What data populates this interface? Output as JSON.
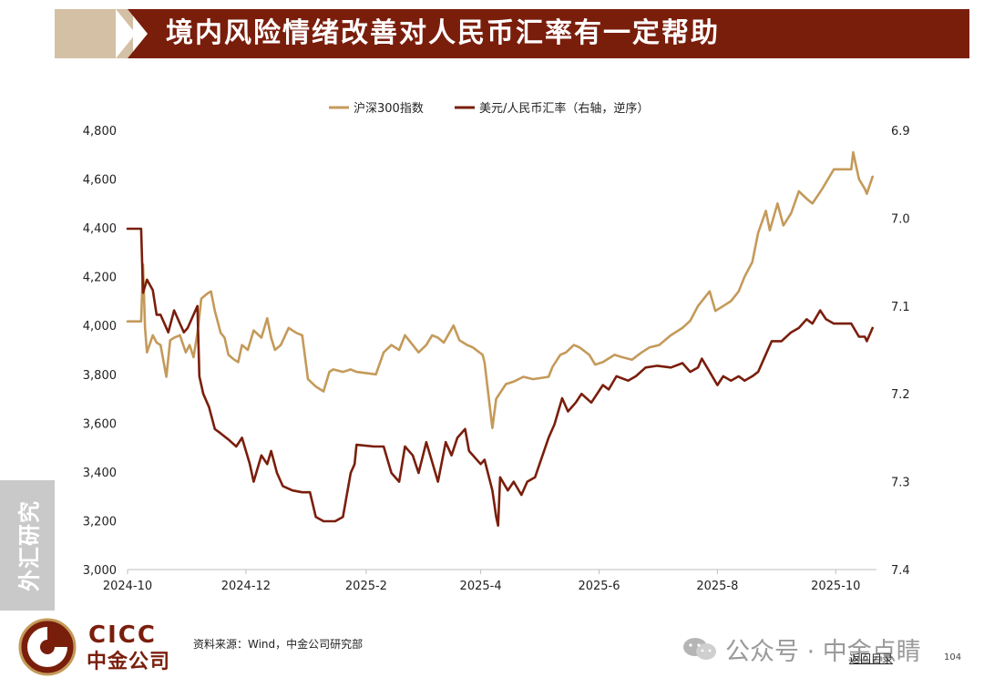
{
  "header": {
    "title": "境内风险情绪改善对人民币汇率有一定帮助"
  },
  "sidebar": {
    "label": "外汇研究"
  },
  "legend": {
    "items": [
      "沪深300指数",
      "美元/人民币汇率（右轴，逆序）"
    ]
  },
  "colors": {
    "brand": "#7a1e0c",
    "csi300": "#c49a5a",
    "usdcny": "#7a1e0c",
    "banner_tab": "#d4c0a4"
  },
  "footer": {
    "source": "资料来源：Wind，中金公司研究部",
    "logo_en": "CICC",
    "logo_cn": "中金公司",
    "watermark": "公众号 · 中金点睛",
    "nav_link": "返回目录",
    "page_number": "104"
  },
  "chart_data": {
    "type": "line",
    "x_tick_labels": [
      "2024-10",
      "2024-12",
      "2025-2",
      "2025-4",
      "2025-6",
      "2025-8",
      "2025-10"
    ],
    "left_axis": {
      "ylim": [
        3000,
        4800
      ],
      "ticks": [
        "3,000",
        "3,200",
        "3,400",
        "3,600",
        "3,800",
        "4,000",
        "4,200",
        "4,400",
        "4,600",
        "4,800"
      ]
    },
    "right_axis": {
      "ylim": [
        6.9,
        7.4
      ],
      "inverted": true,
      "ticks": [
        "6.9",
        "7.0",
        "7.1",
        "7.2",
        "7.3",
        "7.4"
      ]
    },
    "legend_position": "top-center",
    "grid": false,
    "series": [
      {
        "name": "沪深300指数",
        "axis": "left",
        "color": "#c49a5a",
        "points": [
          [
            "2024-10-01",
            4017
          ],
          [
            "2024-10-08",
            4017
          ],
          [
            "2024-10-09",
            4250
          ],
          [
            "2024-10-10",
            3990
          ],
          [
            "2024-10-11",
            3890
          ],
          [
            "2024-10-14",
            3960
          ],
          [
            "2024-10-16",
            3930
          ],
          [
            "2024-10-18",
            3920
          ],
          [
            "2024-10-21",
            3790
          ],
          [
            "2024-10-23",
            3940
          ],
          [
            "2024-10-25",
            3950
          ],
          [
            "2024-10-28",
            3960
          ],
          [
            "2024-10-31",
            3890
          ],
          [
            "2024-11-02",
            3920
          ],
          [
            "2024-11-04",
            3870
          ],
          [
            "2024-11-06",
            3970
          ],
          [
            "2024-11-08",
            4110
          ],
          [
            "2024-11-11",
            4130
          ],
          [
            "2024-11-13",
            4140
          ],
          [
            "2024-11-15",
            4060
          ],
          [
            "2024-11-18",
            3970
          ],
          [
            "2024-11-20",
            3950
          ],
          [
            "2024-11-22",
            3880
          ],
          [
            "2024-11-25",
            3860
          ],
          [
            "2024-11-27",
            3850
          ],
          [
            "2024-11-29",
            3920
          ],
          [
            "2024-12-02",
            3900
          ],
          [
            "2024-12-05",
            3980
          ],
          [
            "2024-12-09",
            3950
          ],
          [
            "2024-12-12",
            4030
          ],
          [
            "2024-12-14",
            3950
          ],
          [
            "2024-12-16",
            3900
          ],
          [
            "2024-12-19",
            3920
          ],
          [
            "2024-12-23",
            3990
          ],
          [
            "2024-12-27",
            3970
          ],
          [
            "2024-12-30",
            3960
          ],
          [
            "2025-01-02",
            3780
          ],
          [
            "2025-01-06",
            3750
          ],
          [
            "2025-01-10",
            3730
          ],
          [
            "2025-01-13",
            3810
          ],
          [
            "2025-01-15",
            3820
          ],
          [
            "2025-01-20",
            3810
          ],
          [
            "2025-01-24",
            3820
          ],
          [
            "2025-01-27",
            3810
          ],
          [
            "2025-02-06",
            3800
          ],
          [
            "2025-02-10",
            3890
          ],
          [
            "2025-02-14",
            3920
          ],
          [
            "2025-02-18",
            3900
          ],
          [
            "2025-02-21",
            3960
          ],
          [
            "2025-02-25",
            3920
          ],
          [
            "2025-02-28",
            3890
          ],
          [
            "2025-03-04",
            3920
          ],
          [
            "2025-03-07",
            3960
          ],
          [
            "2025-03-10",
            3950
          ],
          [
            "2025-03-13",
            3930
          ],
          [
            "2025-03-18",
            4000
          ],
          [
            "2025-03-21",
            3940
          ],
          [
            "2025-03-25",
            3920
          ],
          [
            "2025-03-28",
            3910
          ],
          [
            "2025-04-02",
            3880
          ],
          [
            "2025-04-03",
            3850
          ],
          [
            "2025-04-07",
            3580
          ],
          [
            "2025-04-09",
            3700
          ],
          [
            "2025-04-14",
            3760
          ],
          [
            "2025-04-18",
            3770
          ],
          [
            "2025-04-23",
            3790
          ],
          [
            "2025-04-28",
            3780
          ],
          [
            "2025-05-06",
            3790
          ],
          [
            "2025-05-08",
            3830
          ],
          [
            "2025-05-12",
            3880
          ],
          [
            "2025-05-15",
            3890
          ],
          [
            "2025-05-19",
            3920
          ],
          [
            "2025-05-22",
            3910
          ],
          [
            "2025-05-27",
            3880
          ],
          [
            "2025-05-30",
            3840
          ],
          [
            "2025-06-03",
            3850
          ],
          [
            "2025-06-09",
            3880
          ],
          [
            "2025-06-13",
            3870
          ],
          [
            "2025-06-18",
            3860
          ],
          [
            "2025-06-23",
            3890
          ],
          [
            "2025-06-27",
            3910
          ],
          [
            "2025-07-02",
            3920
          ],
          [
            "2025-07-08",
            3960
          ],
          [
            "2025-07-14",
            3990
          ],
          [
            "2025-07-18",
            4020
          ],
          [
            "2025-07-22",
            4080
          ],
          [
            "2025-07-28",
            4140
          ],
          [
            "2025-07-31",
            4060
          ],
          [
            "2025-08-04",
            4080
          ],
          [
            "2025-08-08",
            4100
          ],
          [
            "2025-08-12",
            4140
          ],
          [
            "2025-08-15",
            4200
          ],
          [
            "2025-08-19",
            4260
          ],
          [
            "2025-08-22",
            4380
          ],
          [
            "2025-08-26",
            4470
          ],
          [
            "2025-08-28",
            4390
          ],
          [
            "2025-09-01",
            4500
          ],
          [
            "2025-09-04",
            4410
          ],
          [
            "2025-09-08",
            4460
          ],
          [
            "2025-09-12",
            4550
          ],
          [
            "2025-09-16",
            4520
          ],
          [
            "2025-09-19",
            4500
          ],
          [
            "2025-09-24",
            4560
          ],
          [
            "2025-09-30",
            4640
          ],
          [
            "2025-10-09",
            4640
          ],
          [
            "2025-10-10",
            4710
          ],
          [
            "2025-10-13",
            4600
          ],
          [
            "2025-10-16",
            4560
          ],
          [
            "2025-10-17",
            4540
          ],
          [
            "2025-10-20",
            4610
          ]
        ]
      },
      {
        "name": "美元/人民币汇率（右轴，逆序）",
        "axis": "right",
        "color": "#7a1e0c",
        "points": [
          [
            "2024-10-01",
            7.012
          ],
          [
            "2024-10-08",
            7.012
          ],
          [
            "2024-10-09",
            7.085
          ],
          [
            "2024-10-11",
            7.07
          ],
          [
            "2024-10-14",
            7.082
          ],
          [
            "2024-10-16",
            7.11
          ],
          [
            "2024-10-18",
            7.11
          ],
          [
            "2024-10-22",
            7.13
          ],
          [
            "2024-10-25",
            7.105
          ],
          [
            "2024-10-28",
            7.12
          ],
          [
            "2024-10-30",
            7.13
          ],
          [
            "2024-11-01",
            7.125
          ],
          [
            "2024-11-04",
            7.11
          ],
          [
            "2024-11-06",
            7.1
          ],
          [
            "2024-11-07",
            7.18
          ],
          [
            "2024-11-09",
            7.2
          ],
          [
            "2024-11-12",
            7.215
          ],
          [
            "2024-11-15",
            7.24
          ],
          [
            "2024-11-18",
            7.245
          ],
          [
            "2024-11-22",
            7.252
          ],
          [
            "2024-11-26",
            7.26
          ],
          [
            "2024-11-29",
            7.25
          ],
          [
            "2024-12-03",
            7.28
          ],
          [
            "2024-12-05",
            7.3
          ],
          [
            "2024-12-09",
            7.27
          ],
          [
            "2024-12-12",
            7.28
          ],
          [
            "2024-12-14",
            7.265
          ],
          [
            "2024-12-17",
            7.29
          ],
          [
            "2024-12-20",
            7.305
          ],
          [
            "2024-12-25",
            7.31
          ],
          [
            "2024-12-30",
            7.312
          ],
          [
            "2025-01-03",
            7.312
          ],
          [
            "2025-01-06",
            7.34
          ],
          [
            "2025-01-10",
            7.345
          ],
          [
            "2025-01-16",
            7.345
          ],
          [
            "2025-01-20",
            7.34
          ],
          [
            "2025-01-24",
            7.29
          ],
          [
            "2025-01-26",
            7.28
          ],
          [
            "2025-01-27",
            7.258
          ],
          [
            "2025-02-05",
            7.26
          ],
          [
            "2025-02-10",
            7.26
          ],
          [
            "2025-02-14",
            7.29
          ],
          [
            "2025-02-18",
            7.3
          ],
          [
            "2025-02-21",
            7.26
          ],
          [
            "2025-02-25",
            7.27
          ],
          [
            "2025-02-28",
            7.29
          ],
          [
            "2025-03-04",
            7.255
          ],
          [
            "2025-03-10",
            7.3
          ],
          [
            "2025-03-14",
            7.255
          ],
          [
            "2025-03-17",
            7.27
          ],
          [
            "2025-03-20",
            7.25
          ],
          [
            "2025-03-24",
            7.24
          ],
          [
            "2025-03-26",
            7.265
          ],
          [
            "2025-03-28",
            7.27
          ],
          [
            "2025-04-01",
            7.28
          ],
          [
            "2025-04-03",
            7.275
          ],
          [
            "2025-04-07",
            7.31
          ],
          [
            "2025-04-09",
            7.34
          ],
          [
            "2025-04-10",
            7.35
          ],
          [
            "2025-04-11",
            7.295
          ],
          [
            "2025-04-15",
            7.31
          ],
          [
            "2025-04-18",
            7.3
          ],
          [
            "2025-04-22",
            7.315
          ],
          [
            "2025-04-25",
            7.3
          ],
          [
            "2025-04-29",
            7.295
          ],
          [
            "2025-05-06",
            7.25
          ],
          [
            "2025-05-09",
            7.235
          ],
          [
            "2025-05-13",
            7.205
          ],
          [
            "2025-05-16",
            7.22
          ],
          [
            "2025-05-20",
            7.21
          ],
          [
            "2025-05-23",
            7.2
          ],
          [
            "2025-05-28",
            7.21
          ],
          [
            "2025-06-03",
            7.19
          ],
          [
            "2025-06-06",
            7.195
          ],
          [
            "2025-06-10",
            7.18
          ],
          [
            "2025-06-16",
            7.185
          ],
          [
            "2025-06-20",
            7.18
          ],
          [
            "2025-06-25",
            7.17
          ],
          [
            "2025-07-01",
            7.168
          ],
          [
            "2025-07-08",
            7.17
          ],
          [
            "2025-07-14",
            7.165
          ],
          [
            "2025-07-18",
            7.175
          ],
          [
            "2025-07-22",
            7.17
          ],
          [
            "2025-07-24",
            7.16
          ],
          [
            "2025-07-28",
            7.175
          ],
          [
            "2025-08-01",
            7.19
          ],
          [
            "2025-08-04",
            7.18
          ],
          [
            "2025-08-08",
            7.185
          ],
          [
            "2025-08-12",
            7.18
          ],
          [
            "2025-08-15",
            7.185
          ],
          [
            "2025-08-19",
            7.18
          ],
          [
            "2025-08-22",
            7.175
          ],
          [
            "2025-08-26",
            7.155
          ],
          [
            "2025-08-29",
            7.14
          ],
          [
            "2025-09-03",
            7.14
          ],
          [
            "2025-09-08",
            7.13
          ],
          [
            "2025-09-12",
            7.125
          ],
          [
            "2025-09-16",
            7.115
          ],
          [
            "2025-09-19",
            7.12
          ],
          [
            "2025-09-23",
            7.105
          ],
          [
            "2025-09-26",
            7.115
          ],
          [
            "2025-09-30",
            7.12
          ],
          [
            "2025-10-09",
            7.12
          ],
          [
            "2025-10-13",
            7.135
          ],
          [
            "2025-10-16",
            7.135
          ],
          [
            "2025-10-17",
            7.14
          ],
          [
            "2025-10-20",
            7.125
          ]
        ]
      }
    ]
  }
}
